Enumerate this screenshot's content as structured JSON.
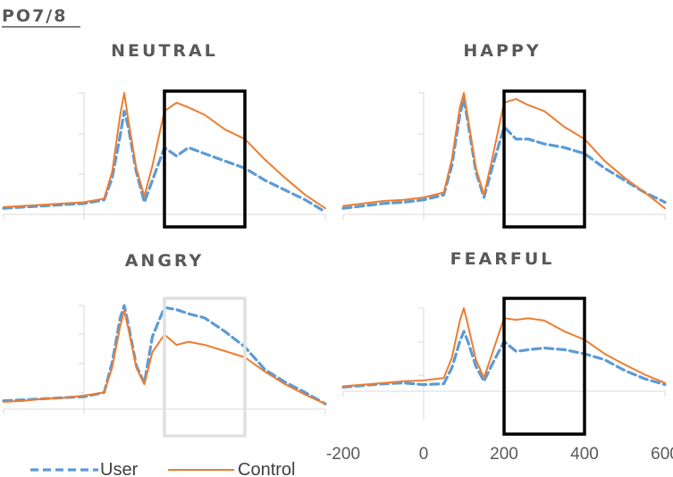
{
  "electrode": "PO7/8",
  "chart_data": {
    "type": "line",
    "x_ticks": [
      -200,
      0,
      200,
      400,
      600
    ],
    "xlim": [
      -200,
      600
    ],
    "legend": {
      "placement": "bottom-left",
      "entries": [
        "User",
        "Control"
      ]
    },
    "series_styles": {
      "User": {
        "color": "#5b9bd5",
        "dash": "dashed"
      },
      "Control": {
        "color": "#ed7d31",
        "dash": "solid"
      }
    },
    "panels": [
      {
        "title": "NEUTRAL",
        "highlight_window": [
          200,
          400
        ],
        "highlight_color": "#000000",
        "series": [
          {
            "name": "User",
            "x": [
              -200,
              -150,
              -100,
              -50,
              0,
              50,
              70,
              90,
              100,
              110,
              130,
              150,
              170,
              200,
              230,
              260,
              300,
              350,
              400,
              450,
              500,
              550,
              600
            ],
            "y": [
              0.05,
              0.06,
              0.07,
              0.08,
              0.09,
              0.12,
              0.3,
              0.65,
              0.85,
              0.72,
              0.35,
              0.1,
              0.28,
              0.55,
              0.48,
              0.55,
              0.5,
              0.44,
              0.38,
              0.28,
              0.2,
              0.12,
              0.02
            ]
          },
          {
            "name": "Control",
            "x": [
              -200,
              -150,
              -100,
              -50,
              0,
              50,
              70,
              90,
              100,
              110,
              130,
              150,
              170,
              200,
              230,
              260,
              300,
              350,
              400,
              450,
              500,
              550,
              600
            ],
            "y": [
              0.06,
              0.07,
              0.08,
              0.09,
              0.1,
              0.13,
              0.35,
              0.82,
              1.0,
              0.78,
              0.38,
              0.15,
              0.4,
              0.85,
              0.92,
              0.88,
              0.82,
              0.7,
              0.62,
              0.45,
              0.3,
              0.16,
              0.05
            ]
          }
        ]
      },
      {
        "title": "HAPPY",
        "highlight_window": [
          200,
          400
        ],
        "highlight_color": "#000000",
        "series": [
          {
            "name": "User",
            "x": [
              -200,
              -150,
              -100,
              -50,
              0,
              50,
              70,
              90,
              100,
              110,
              130,
              150,
              170,
              200,
              230,
              260,
              300,
              350,
              400,
              450,
              500,
              550,
              600
            ],
            "y": [
              0.05,
              0.07,
              0.09,
              0.1,
              0.12,
              0.16,
              0.4,
              0.82,
              0.95,
              0.76,
              0.35,
              0.14,
              0.38,
              0.72,
              0.62,
              0.62,
              0.58,
              0.55,
              0.5,
              0.38,
              0.28,
              0.18,
              0.1
            ]
          },
          {
            "name": "Control",
            "x": [
              -200,
              -150,
              -100,
              -50,
              0,
              50,
              70,
              90,
              100,
              110,
              130,
              150,
              170,
              200,
              230,
              260,
              300,
              350,
              400,
              450,
              500,
              550,
              600
            ],
            "y": [
              0.07,
              0.09,
              0.11,
              0.12,
              0.14,
              0.18,
              0.45,
              0.88,
              1.0,
              0.8,
              0.38,
              0.16,
              0.45,
              0.92,
              0.95,
              0.9,
              0.85,
              0.72,
              0.62,
              0.44,
              0.3,
              0.18,
              0.05
            ]
          }
        ]
      },
      {
        "title": "ANGRY",
        "highlight_window": [
          200,
          400
        ],
        "highlight_color": "#e0e0e0",
        "series": [
          {
            "name": "User",
            "x": [
              -200,
              -150,
              -100,
              -50,
              0,
              50,
              70,
              90,
              100,
              110,
              130,
              150,
              170,
              200,
              230,
              260,
              300,
              350,
              400,
              450,
              500,
              550,
              600
            ],
            "y": [
              0.08,
              0.09,
              0.1,
              0.11,
              0.12,
              0.16,
              0.45,
              0.88,
              1.0,
              0.82,
              0.42,
              0.25,
              0.7,
              0.98,
              0.96,
              0.92,
              0.88,
              0.75,
              0.6,
              0.38,
              0.26,
              0.16,
              0.05
            ]
          },
          {
            "name": "Control",
            "x": [
              -200,
              -150,
              -100,
              -50,
              0,
              50,
              70,
              90,
              100,
              110,
              130,
              150,
              170,
              200,
              230,
              260,
              300,
              350,
              400,
              450,
              500,
              550,
              600
            ],
            "y": [
              0.07,
              0.08,
              0.1,
              0.11,
              0.13,
              0.16,
              0.4,
              0.8,
              0.95,
              0.78,
              0.4,
              0.24,
              0.55,
              0.72,
              0.62,
              0.65,
              0.62,
              0.56,
              0.5,
              0.36,
              0.24,
              0.14,
              0.05
            ]
          }
        ]
      },
      {
        "title": "FEARFUL",
        "highlight_window": [
          200,
          400
        ],
        "highlight_color": "#000000",
        "series": [
          {
            "name": "User",
            "x": [
              -200,
              -150,
              -100,
              -50,
              0,
              50,
              70,
              90,
              100,
              110,
              130,
              150,
              170,
              200,
              230,
              260,
              300,
              350,
              400,
              450,
              500,
              550,
              600
            ],
            "y": [
              0.05,
              0.07,
              0.09,
              0.1,
              0.08,
              0.09,
              0.28,
              0.6,
              0.72,
              0.6,
              0.3,
              0.12,
              0.32,
              0.6,
              0.48,
              0.5,
              0.52,
              0.5,
              0.45,
              0.38,
              0.25,
              0.15,
              0.08
            ]
          },
          {
            "name": "Control",
            "x": [
              -200,
              -150,
              -100,
              -50,
              0,
              50,
              70,
              90,
              100,
              110,
              130,
              150,
              170,
              200,
              230,
              260,
              300,
              350,
              400,
              450,
              500,
              550,
              600
            ],
            "y": [
              0.06,
              0.08,
              0.1,
              0.12,
              0.13,
              0.16,
              0.4,
              0.85,
              1.0,
              0.8,
              0.38,
              0.16,
              0.45,
              0.88,
              0.86,
              0.88,
              0.85,
              0.72,
              0.62,
              0.45,
              0.32,
              0.2,
              0.1
            ]
          }
        ]
      }
    ]
  }
}
